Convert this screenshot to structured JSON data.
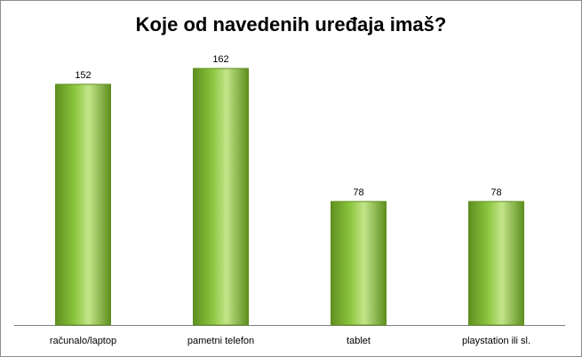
{
  "chart_data": {
    "type": "bar",
    "title": "Koje od navedenih uređaja imaš?",
    "categories": [
      "računalo/laptop",
      "pametni telefon",
      "tablet",
      "playstation ili sl."
    ],
    "values": [
      152,
      162,
      78,
      78
    ],
    "ylim": [
      0,
      180
    ],
    "grid": false,
    "legend": "none",
    "bar_color": "#8cc63f",
    "bar_color_dark": "#5e8f1f",
    "bar_color_light": "#c3e58a"
  }
}
